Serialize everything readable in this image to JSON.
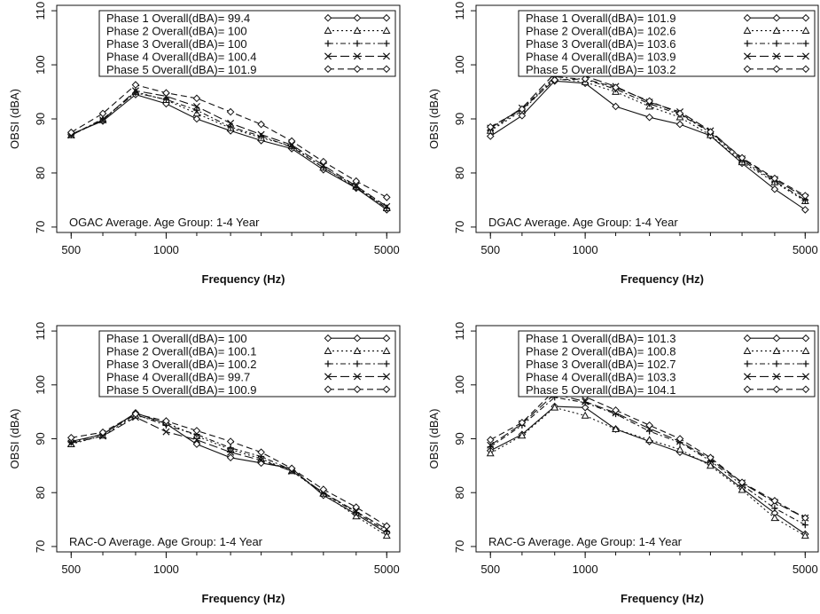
{
  "chart_data": [
    {
      "type": "line",
      "annotation": "OGAC  Average.  Age Group:  1-4  Year",
      "xlabel": "Frequency (Hz)",
      "ylabel": "OBSI (dBA)",
      "x_scale": "log",
      "xlim": [
        450,
        5500
      ],
      "ylim": [
        69,
        111
      ],
      "x_ticks": [
        500,
        1000,
        5000
      ],
      "y_ticks": [
        70,
        80,
        90,
        100,
        110
      ],
      "legend_position": "top",
      "x": [
        500,
        630,
        800,
        1000,
        1250,
        1600,
        2000,
        2500,
        3150,
        4000,
        5000
      ],
      "series": [
        {
          "name": "Phase 1 Overall(dBA)= 99.4",
          "values": [
            87.2,
            89.6,
            94.5,
            92.8,
            90.0,
            87.8,
            86.0,
            84.5,
            80.6,
            77.2,
            73.2
          ]
        },
        {
          "name": "Phase 2 Overall(dBA)= 100",
          "values": [
            87.0,
            89.8,
            95.0,
            93.5,
            91.0,
            88.3,
            86.5,
            85.0,
            81.0,
            77.5,
            73.5
          ]
        },
        {
          "name": "Phase 3 Overall(dBA)= 100",
          "values": [
            87.0,
            90.0,
            94.8,
            93.6,
            91.6,
            88.5,
            86.8,
            84.8,
            81.0,
            77.3,
            73.5
          ]
        },
        {
          "name": "Phase 4 Overall(dBA)= 100.4",
          "values": [
            87.0,
            89.8,
            95.2,
            94.2,
            92.3,
            89.2,
            87.1,
            85.2,
            81.4,
            77.6,
            73.8
          ]
        },
        {
          "name": "Phase 5 Overall(dBA)= 101.9",
          "values": [
            87.5,
            91.0,
            96.3,
            94.8,
            93.8,
            91.3,
            89.0,
            85.9,
            82.1,
            78.5,
            75.5
          ]
        }
      ]
    },
    {
      "type": "line",
      "annotation": "DGAC  Average.  Age Group:  1-4  Year",
      "xlabel": "Frequency (Hz)",
      "ylabel": "OBSI (dBA)",
      "x_scale": "log",
      "xlim": [
        450,
        5500
      ],
      "ylim": [
        69,
        111
      ],
      "x_ticks": [
        500,
        1000,
        5000
      ],
      "y_ticks": [
        70,
        80,
        90,
        100,
        110
      ],
      "legend_position": "top",
      "x": [
        500,
        630,
        800,
        1000,
        1250,
        1600,
        2000,
        2500,
        3150,
        4000,
        5000
      ],
      "series": [
        {
          "name": "Phase 1 Overall(dBA)= 101.9",
          "values": [
            86.8,
            90.6,
            97.0,
            96.6,
            92.3,
            90.3,
            89.0,
            86.9,
            81.8,
            77.0,
            73.2
          ]
        },
        {
          "name": "Phase 2 Overall(dBA)= 102.6",
          "values": [
            87.8,
            91.5,
            97.5,
            96.8,
            95.0,
            92.3,
            90.3,
            87.0,
            82.0,
            78.3,
            74.8
          ]
        },
        {
          "name": "Phase 3 Overall(dBA)= 103.6",
          "values": [
            88.0,
            91.8,
            97.8,
            97.3,
            95.5,
            92.8,
            90.8,
            87.5,
            82.3,
            78.5,
            75.0
          ]
        },
        {
          "name": "Phase 4 Overall(dBA)= 103.9",
          "values": [
            88.3,
            92.0,
            98.4,
            97.9,
            96.0,
            93.1,
            91.3,
            87.8,
            82.6,
            78.8,
            75.5
          ]
        },
        {
          "name": "Phase 5 Overall(dBA)= 103.2",
          "values": [
            88.5,
            91.8,
            97.2,
            97.4,
            95.8,
            93.3,
            91.0,
            87.6,
            82.8,
            79.0,
            75.8
          ]
        }
      ]
    },
    {
      "type": "line",
      "annotation": "RAC-O  Average.  Age Group:  1-4  Year",
      "xlabel": "Frequency (Hz)",
      "ylabel": "OBSI (dBA)",
      "x_scale": "log",
      "xlim": [
        450,
        5500
      ],
      "ylim": [
        69,
        111
      ],
      "x_ticks": [
        500,
        1000,
        5000
      ],
      "y_ticks": [
        70,
        80,
        90,
        100,
        110
      ],
      "legend_position": "top",
      "x": [
        500,
        630,
        800,
        1000,
        1250,
        1600,
        2000,
        2500,
        3150,
        4000,
        5000
      ],
      "series": [
        {
          "name": "Phase 1 Overall(dBA)= 100",
          "values": [
            89.5,
            90.8,
            94.8,
            92.8,
            89.0,
            86.5,
            85.5,
            84.5,
            79.5,
            76.0,
            72.5
          ]
        },
        {
          "name": "Phase 2 Overall(dBA)= 100.1",
          "values": [
            89.0,
            90.6,
            94.3,
            93.0,
            90.5,
            88.0,
            86.3,
            84.0,
            79.8,
            75.6,
            72.0
          ]
        },
        {
          "name": "Phase 3 Overall(dBA)= 100.2",
          "values": [
            89.3,
            90.9,
            94.5,
            92.5,
            90.8,
            88.3,
            86.7,
            84.2,
            79.9,
            76.3,
            72.8
          ]
        },
        {
          "name": "Phase 4 Overall(dBA)= 99.7",
          "values": [
            89.2,
            90.5,
            94.0,
            91.3,
            89.8,
            87.5,
            86.0,
            84.0,
            80.0,
            76.5,
            73.2
          ]
        },
        {
          "name": "Phase 5 Overall(dBA)= 100.9",
          "values": [
            90.2,
            91.2,
            94.6,
            93.3,
            91.5,
            89.5,
            87.5,
            84.5,
            80.6,
            77.3,
            73.8
          ]
        }
      ]
    },
    {
      "type": "line",
      "annotation": "RAC-G  Average.  Age Group:  1-4  Year",
      "xlabel": "Frequency (Hz)",
      "ylabel": "OBSI (dBA)",
      "x_scale": "log",
      "xlim": [
        450,
        5500
      ],
      "ylim": [
        69,
        111
      ],
      "x_ticks": [
        500,
        1000,
        5000
      ],
      "y_ticks": [
        70,
        80,
        90,
        100,
        110
      ],
      "legend_position": "top",
      "x": [
        500,
        630,
        800,
        1000,
        1250,
        1600,
        2000,
        2500,
        3150,
        4000,
        5000
      ],
      "series": [
        {
          "name": "Phase 1 Overall(dBA)= 101.3",
          "values": [
            87.8,
            90.8,
            96.0,
            95.8,
            91.8,
            89.5,
            87.5,
            85.3,
            80.8,
            76.2,
            72.3
          ]
        },
        {
          "name": "Phase 2 Overall(dBA)= 100.8",
          "values": [
            87.3,
            90.6,
            95.8,
            94.3,
            91.8,
            89.8,
            88.0,
            85.0,
            80.5,
            75.3,
            72.0
          ]
        },
        {
          "name": "Phase 3 Overall(dBA)= 102.7",
          "values": [
            88.5,
            92.5,
            97.7,
            96.7,
            94.6,
            91.4,
            89.3,
            85.9,
            81.4,
            77.1,
            74.0
          ]
        },
        {
          "name": "Phase 4 Overall(dBA)= 103.3",
          "values": [
            88.8,
            92.8,
            98.3,
            96.9,
            94.8,
            91.9,
            89.5,
            86.2,
            81.8,
            78.2,
            75.3
          ]
        },
        {
          "name": "Phase 5 Overall(dBA)= 104.1",
          "values": [
            89.8,
            93.0,
            99.0,
            97.8,
            95.3,
            92.5,
            90.0,
            86.5,
            81.9,
            78.5,
            75.3
          ]
        }
      ]
    }
  ]
}
